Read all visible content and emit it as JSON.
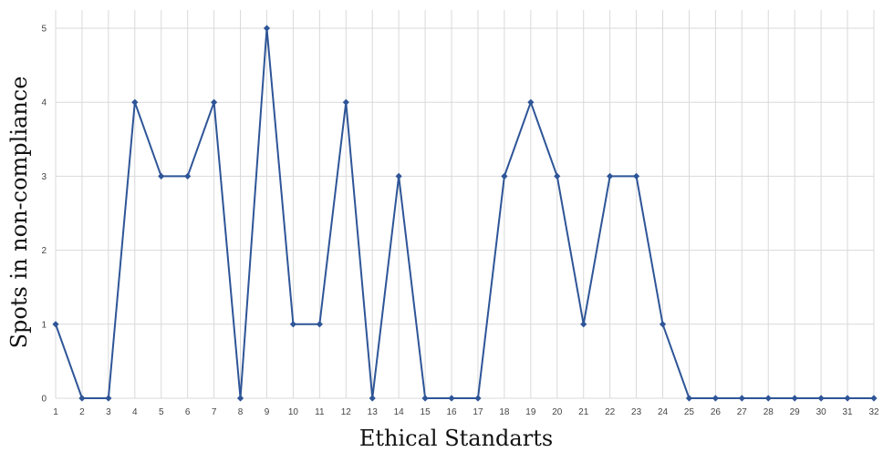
{
  "chart_data": {
    "type": "line",
    "title": "",
    "xlabel": "Ethical Standarts",
    "ylabel": "Spots in non-compliance",
    "x": [
      1,
      2,
      3,
      4,
      5,
      6,
      7,
      8,
      9,
      10,
      11,
      12,
      13,
      14,
      15,
      16,
      17,
      18,
      19,
      20,
      21,
      22,
      23,
      24,
      25,
      26,
      27,
      28,
      29,
      30,
      31,
      32
    ],
    "series": [
      {
        "values": [
          1,
          0,
          0,
          4,
          3,
          3,
          4,
          0,
          5,
          1,
          1,
          4,
          0,
          3,
          0,
          0,
          0,
          3,
          4,
          3,
          1,
          3,
          3,
          1,
          0,
          0,
          0,
          0,
          0,
          0,
          0,
          0
        ]
      }
    ],
    "ylim": [
      0,
      5
    ],
    "yticks": [
      0,
      1,
      2,
      3,
      4,
      5
    ],
    "grid": true,
    "marker": "diamond",
    "color": "#2e5597"
  }
}
